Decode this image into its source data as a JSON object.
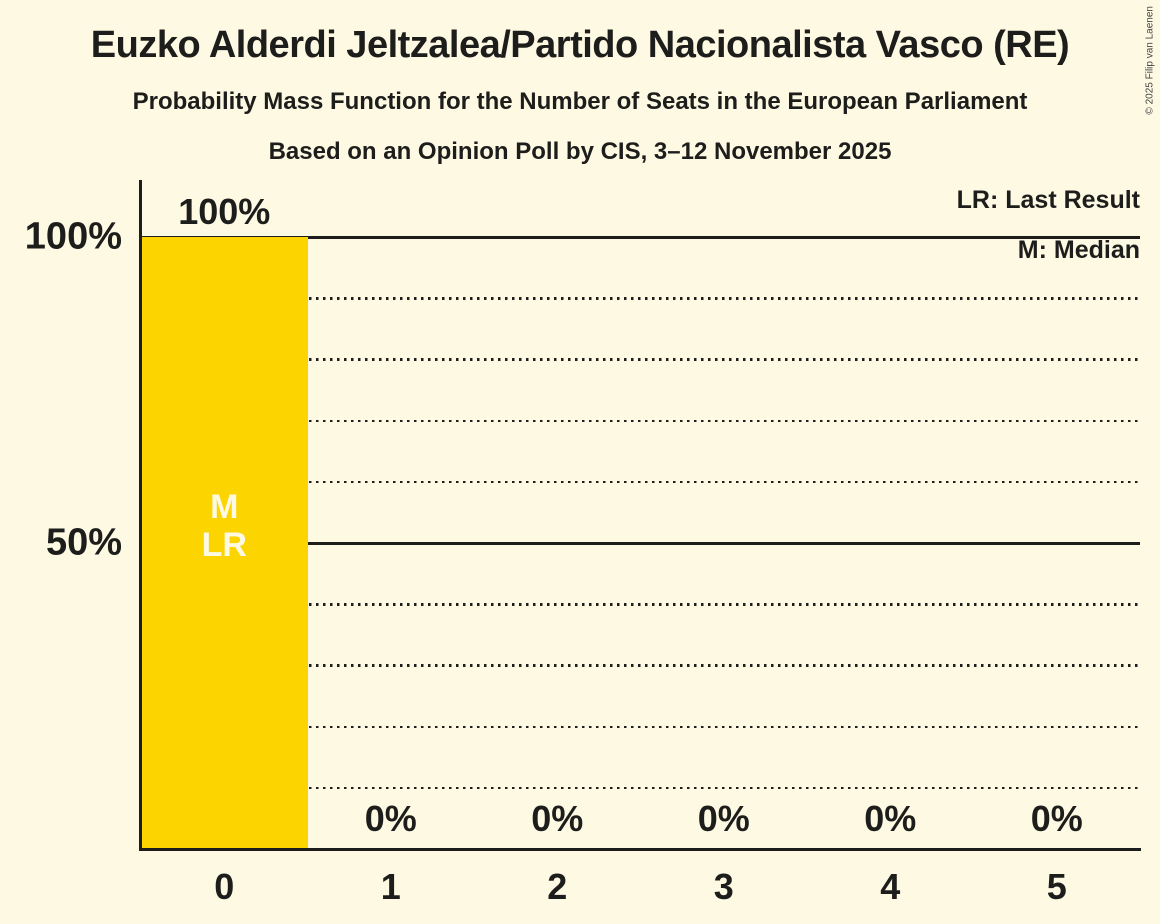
{
  "header": {
    "title": "Euzko Alderdi Jeltzalea/Partido Nacionalista Vasco (RE)",
    "subtitle": "Probability Mass Function for the Number of Seats in the European Parliament",
    "poll_line": "Based on an Opinion Poll by CIS, 3–12 November 2025"
  },
  "copyright": "© 2025 Filip van Laenen",
  "legend": {
    "lr": "LR: Last Result",
    "m": "M: Median"
  },
  "colors": {
    "background": "#FDF9E3",
    "bar": "#FCD500",
    "text": "#1D1D1B",
    "line": "#1D1D1B",
    "bar_annotation": "#FDF9E3",
    "copyright": "#444444"
  },
  "chart_data": {
    "type": "bar",
    "categories": [
      "0",
      "1",
      "2",
      "3",
      "4",
      "5"
    ],
    "values": [
      100,
      0,
      0,
      0,
      0,
      0
    ],
    "value_labels": [
      "100%",
      "0%",
      "0%",
      "0%",
      "0%",
      "0%"
    ],
    "title": "Euzko Alderdi Jeltzalea/Partido Nacionalista Vasco (RE)",
    "xlabel": "",
    "ylabel": "",
    "ylim": [
      0,
      109
    ],
    "yticks": [
      {
        "value": 100,
        "label": "100%"
      },
      {
        "value": 50,
        "label": "50%"
      }
    ],
    "gridlines": {
      "solid": [
        100,
        50
      ],
      "dotted": [
        90,
        80,
        70,
        60,
        40,
        30,
        20,
        10
      ]
    },
    "grid": "on",
    "legend_position": "top-right",
    "annotations": {
      "median_category": "0",
      "last_result_category": "0",
      "in_bar_lines": [
        "M",
        "LR"
      ]
    }
  }
}
